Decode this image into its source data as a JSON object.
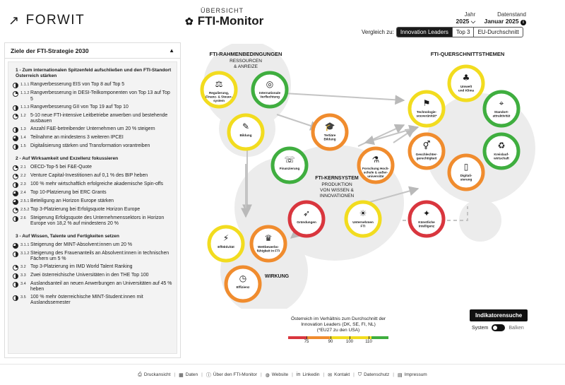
{
  "header": {
    "brand": "FORWIT",
    "overline": "ÜBERSICHT",
    "title": "FTI-Monitor",
    "year_label": "Jahr",
    "year_value": "2025",
    "stand_label": "Datenstand",
    "stand_value": "Januar 2025",
    "compare_label": "Vergleich zu:",
    "compare_options": [
      "Innovation Leaders",
      "Top 3",
      "EU-Durchschnitt"
    ]
  },
  "sidebar": {
    "title": "Ziele der FTI-Strategie 2030",
    "sections": [
      {
        "title": "1 - Zum internationalen Spitzenfeld aufschließen und den FTI-Standort Österreich stärken",
        "goals": [
          {
            "num": "1.1.1",
            "text": "Rangverbesserung EIS von Top 8 auf Top 5",
            "fill": 0.5
          },
          {
            "num": "1.1.2",
            "text": "Rangverbesserung in DESI-Teilkomponenten von Top 13 auf Top 5",
            "fill": 0.25
          },
          {
            "num": "1.1.3",
            "text": "Rangverbesserung GII von Top 19 auf Top 10",
            "fill": 0.5
          },
          {
            "num": "1.2",
            "text": "5-10 neue FTI-intensive Leitbetriebe anwerben und bestehende ausbauen",
            "fill": 0.25
          },
          {
            "num": "1.3",
            "text": "Anzahl F&E-betreibender Unternehmen um 20 % steigern",
            "fill": 0.5
          },
          {
            "num": "1.4",
            "text": "Teilnahme an mindestens 3 weiteren IPCEI",
            "fill": 0.75
          },
          {
            "num": "1.5",
            "text": "Digitalisierung stärken und Transformation vorantreiben",
            "fill": 0.5
          }
        ]
      },
      {
        "title": "2 - Auf Wirksamkeit und Exzellenz fokussieren",
        "goals": [
          {
            "num": "2.1",
            "text": "OECD-Top-5 bei F&E-Quote",
            "fill": 0.25
          },
          {
            "num": "2.2",
            "text": "Venture Capital-Investitionen auf 0,1 % des BIP heben",
            "fill": 0.25
          },
          {
            "num": "2.3",
            "text": "100 % mehr wirtschaftlich erfolgreiche akademische Spin-offs",
            "fill": 0.5
          },
          {
            "num": "2.4",
            "text": "Top 10-Platzierung bei ERC Grants",
            "fill": 0.75
          },
          {
            "num": "2.5.1",
            "text": "Beteiligung an Horizon Europe stärken",
            "fill": 0.75
          },
          {
            "num": "2.5.2",
            "text": "Top 3-Platzierung bei Erfolgsquote Horizon Europe",
            "fill": 0.25
          },
          {
            "num": "2.6",
            "text": "Steigerung Erfolgsquote des Unternehmenssektors in Horizon Europe von 18,2 % auf mindestens 20 %",
            "fill": 0.5
          }
        ]
      },
      {
        "title": "3 - Auf Wissen, Talente und Fertigkeiten setzen",
        "goals": [
          {
            "num": "3.1.1",
            "text": "Steigerung der MINT-Absolvent:innen um 20 %",
            "fill": 0.75
          },
          {
            "num": "3.1.2",
            "text": "Steigerung des Frauenanteils an Absolvent:innen in technischen Fächern um 5 %",
            "fill": 0.5
          },
          {
            "num": "3.2",
            "text": "Top 3-Platzierung im IMD World Talent Ranking",
            "fill": 0.25
          },
          {
            "num": "3.3",
            "text": "Zwei österreichische Universitäten in den THE Top 100",
            "fill": 0.5
          },
          {
            "num": "3.4",
            "text": "Auslandsanteil an neuen Anwerbungen an Universitäten auf 45 % heben",
            "fill": 0.5
          },
          {
            "num": "3.5",
            "text": "100 % mehr österreichische MINT-Student:innen mit Auslandssemester",
            "fill": 0.5
          }
        ]
      }
    ]
  },
  "diagram": {
    "rahmen_title": "FTI-RAHMENBEDINGUNGEN",
    "rahmen_sub1": "RESSOURCEN",
    "rahmen_sub2": "& ANREIZE",
    "quer_title": "FTI-QUERSCHNITTSTHEMEN",
    "kern_title": "FTI-KERNSYSTEM",
    "kern_sub1": "PRODUKTION",
    "kern_sub2": "VON WISSEN &",
    "kern_sub3": "INNOVATIONEN",
    "wirkung_title": "WIRKUNG",
    "nodes": {
      "regulierung": [
        "Regulierung,",
        "Finanz- & Steuer-",
        "system"
      ],
      "verfechtung": [
        "Internationale",
        "Verflechtung"
      ],
      "bildung": [
        "Bildung"
      ],
      "tertiaer": [
        "Tertiäre",
        "Bildung"
      ],
      "finanzierung": [
        "Finanzierung"
      ],
      "forschung": [
        "Forschung Hoch-",
        "schule & außer-",
        "universitär"
      ],
      "gruendungen": [
        "Gründungen"
      ],
      "unternehmen": [
        "Unternehmen",
        "FTI"
      ],
      "effektivitaet": [
        "Effektivität"
      ],
      "wettbewerb": [
        "Wettbewerbs-",
        "fähigkeit in FTI"
      ],
      "effizienz": [
        "Effizienz"
      ],
      "technologie": [
        "Technologie-",
        "souveränität*"
      ],
      "umwelt": [
        "Umwelt",
        "und Klima"
      ],
      "standort": [
        "Standort-",
        "attraktivität"
      ],
      "geschlecht": [
        "Geschlechter-",
        "gerechtigkeit"
      ],
      "digital": [
        "Digitali-",
        "sierung"
      ],
      "kreislauf": [
        "Kreislauf-",
        "wirtschaft"
      ],
      "ki": [
        "Künstliche",
        "Intelligenz"
      ]
    }
  },
  "colors": {
    "red": "#d9363e",
    "orange": "#f08c2e",
    "yellow": "#f2dc1f",
    "green": "#3fae3f",
    "grey": "#bfbfbf",
    "dark": "#1a1a1a"
  },
  "controls": {
    "indikator_button": "Indikatorensuche",
    "toggle_left": "System",
    "toggle_right": "Balken"
  },
  "legend": {
    "line1": "Österreich im Verhältnis zum Durchschnitt der",
    "line2": "Innovation Leaders (DK, SE, FI, NL)",
    "line3": "(*EU27 zu den USA)",
    "ticks": [
      "75",
      "90",
      "100",
      "110"
    ]
  },
  "footer": {
    "items": [
      {
        "label": "Druckansicht",
        "icon": "print-icon"
      },
      {
        "label": "Daten",
        "icon": "table-icon"
      },
      {
        "label": "Über den FTI-Monitor",
        "icon": "info-icon"
      },
      {
        "label": "Website",
        "icon": "globe-icon"
      },
      {
        "label": "Linkedin",
        "icon": "linkedin-icon"
      },
      {
        "label": "Kontakt",
        "icon": "mail-icon"
      },
      {
        "label": "Datenschutz",
        "icon": "shield-icon"
      },
      {
        "label": "Impressum",
        "icon": "document-icon"
      }
    ]
  }
}
